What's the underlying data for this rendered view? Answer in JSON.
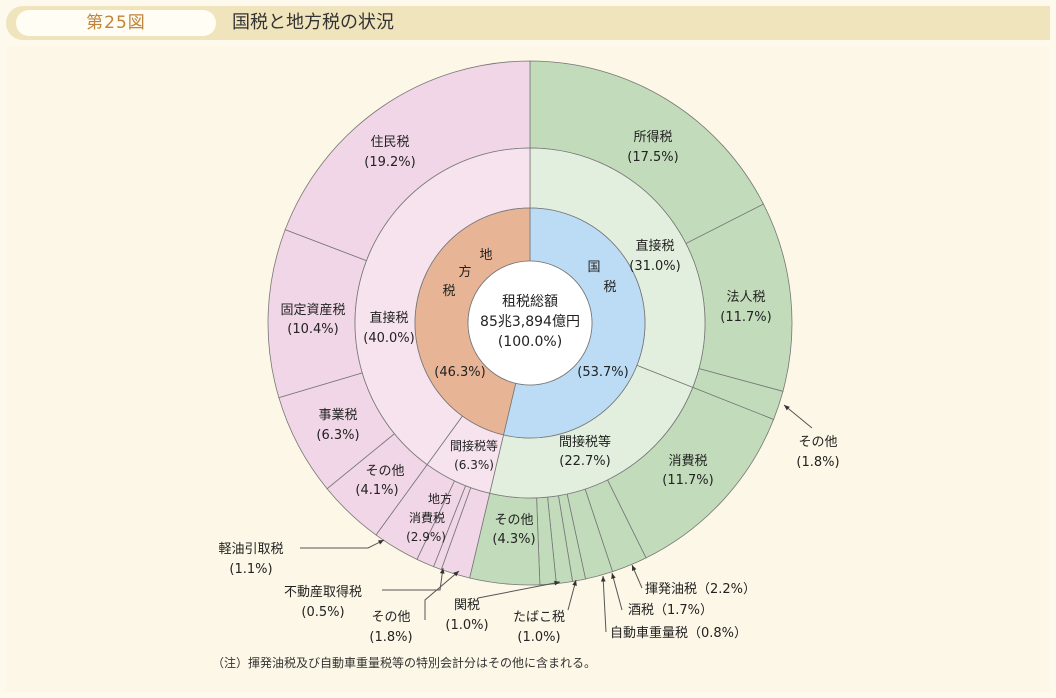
{
  "header": {
    "figure_number": "第25図",
    "title": "国税と地方税の状況"
  },
  "colors": {
    "national_inner": "#bcdcf5",
    "national_mid": "#e3efde",
    "national_outer": "#c2dcbb",
    "local_inner": "#e8b496",
    "local_mid": "#f7e3ee",
    "local_outer": "#f0d6e6",
    "center": "#ffffff",
    "stroke": "#777777"
  },
  "chart_data": {
    "type": "pie",
    "title": "国税と地方税の状況",
    "total": {
      "label": "租税総額",
      "value": "85兆3,894億円",
      "percent": "(100.0%)"
    },
    "inner": [
      {
        "name": "国税",
        "value": 53.7,
        "label": "国\n税",
        "percent": "(53.7%)",
        "group": "national"
      },
      {
        "name": "地方税",
        "value": 46.3,
        "label": "地\n方\n税",
        "percent": "(46.3%)",
        "group": "local"
      }
    ],
    "middle": [
      {
        "name": "直接税",
        "value": 31.0,
        "percent": "(31.0%)",
        "group": "national"
      },
      {
        "name": "間接税等",
        "value": 22.7,
        "percent": "(22.7%)",
        "group": "national"
      },
      {
        "name": "間接税等",
        "value": 6.3,
        "percent": "(6.3%)",
        "group": "local"
      },
      {
        "name": "直接税",
        "value": 40.0,
        "percent": "(40.0%)",
        "group": "local"
      }
    ],
    "outer": [
      {
        "name": "所得税",
        "value": 17.5,
        "percent": "(17.5%)",
        "group": "national"
      },
      {
        "name": "法人税",
        "value": 11.7,
        "percent": "(11.7%)",
        "group": "national"
      },
      {
        "name": "その他",
        "value": 1.8,
        "percent": "(1.8%)",
        "group": "national"
      },
      {
        "name": "消費税",
        "value": 11.7,
        "percent": "(11.7%)",
        "group": "national"
      },
      {
        "name": "揮発油税",
        "value": 2.2,
        "percent": "(2.2%)",
        "group": "national"
      },
      {
        "name": "酒税",
        "value": 1.7,
        "percent": "(1.7%)",
        "group": "national"
      },
      {
        "name": "自動車重量税",
        "value": 0.8,
        "percent": "(0.8%)",
        "group": "national"
      },
      {
        "name": "たばこ税",
        "value": 1.0,
        "percent": "(1.0%)",
        "group": "national"
      },
      {
        "name": "関税",
        "value": 1.0,
        "percent": "(1.0%)",
        "group": "national"
      },
      {
        "name": "その他",
        "value": 4.3,
        "percent": "(4.3%)",
        "group": "national"
      },
      {
        "name": "その他",
        "value": 1.8,
        "percent": "(1.8%)",
        "group": "local"
      },
      {
        "name": "不動産取得税",
        "value": 0.5,
        "percent": "(0.5%)",
        "group": "local"
      },
      {
        "name": "軽油引取税",
        "value": 1.1,
        "percent": "(1.1%)",
        "group": "local"
      },
      {
        "name": "地方消費税",
        "value": 2.9,
        "percent": "(2.9%)",
        "group": "local"
      },
      {
        "name": "その他",
        "value": 4.1,
        "percent": "(4.1%)",
        "group": "local"
      },
      {
        "name": "事業税",
        "value": 6.3,
        "percent": "(6.3%)",
        "group": "local"
      },
      {
        "name": "固定資産税",
        "value": 10.4,
        "percent": "(10.4%)",
        "group": "local"
      },
      {
        "name": "住民税",
        "value": 19.2,
        "percent": "(19.2%)",
        "group": "local"
      }
    ]
  },
  "labels": {
    "shotoku": "所得税",
    "shotoku_p": "(17.5%)",
    "hojin": "法人税",
    "hojin_p": "(11.7%)",
    "sonota_n1": "その他",
    "sonota_n1_p": "(1.8%)",
    "shohi": "消費税",
    "shohi_p": "(11.7%)",
    "kihatsu": "揮発油税（2.2%）",
    "shuzei": "酒税（1.7%）",
    "jidosha": "自動車重量税（0.8%）",
    "tabako": "たばこ税",
    "tabako_p": "(1.0%)",
    "kanzei": "関税",
    "kanzei_p": "(1.0%)",
    "sonota_n2": "その他",
    "sonota_n2_p": "(4.3%)",
    "sonota_l1": "その他",
    "sonota_l1_p": "(1.8%)",
    "fudosan": "不動産取得税",
    "fudosan_p": "(0.5%)",
    "keiyu": "軽油引取税",
    "keiyu_p": "(1.1%)",
    "chiho_shohi_1": "地方",
    "chiho_shohi_2": "消費税",
    "chiho_shohi_p": "(2.9%)",
    "sonota_l2": "その他",
    "sonota_l2_p": "(4.1%)",
    "jigyo": "事業税",
    "jigyo_p": "(6.3%)",
    "kotei": "固定資産税",
    "kotei_p": "(10.4%)",
    "jumin": "住民税",
    "jumin_p": "(19.2%)",
    "n_direct": "直接税",
    "n_direct_p": "(31.0%)",
    "n_indirect": "間接税等",
    "n_indirect_p": "(22.7%)",
    "l_direct": "直接税",
    "l_direct_p": "(40.0%)",
    "l_indirect": "間接税等",
    "l_indirect_p": "(6.3%)",
    "kokuzei_1": "国",
    "kokuzei_2": "税",
    "kokuzei_p": "(53.7%)",
    "chihozei_1": "地",
    "chihozei_2": "方",
    "chihozei_3": "税",
    "chihozei_p": "(46.3%)",
    "center_1": "租税総額",
    "center_2": "85兆3,894億円",
    "center_3": "(100.0%)"
  },
  "note": "（注）揮発油税及び自動車重量税等の特別会計分はその他に含まれる。"
}
